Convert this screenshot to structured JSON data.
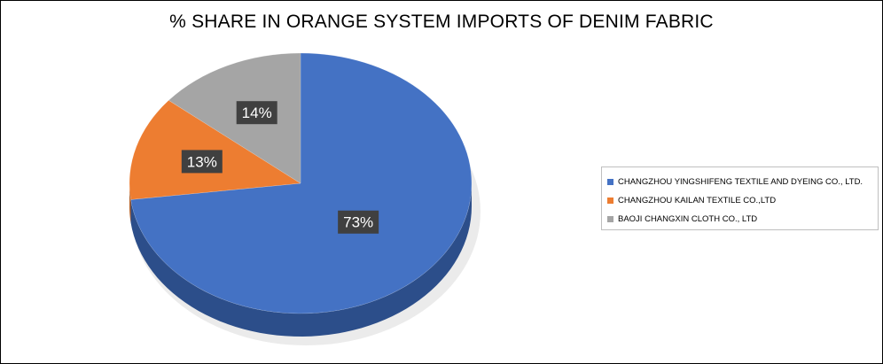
{
  "chart_data": {
    "type": "pie",
    "title": "% SHARE IN ORANGE SYSTEM IMPORTS OF DENIM FABRIC",
    "categories": [
      "CHANGZHOU YINGSHIFENG TEXTILE AND DYEING CO., LTD.",
      "CHANGZHOU KAILAN TEXTILE CO.,LTD",
      "BAOJI CHANGXIN CLOTH CO., LTD"
    ],
    "values": [
      73,
      13,
      14
    ],
    "labels": [
      "73%",
      "13%",
      "14%"
    ],
    "colors": [
      "#4472c4",
      "#ed7d31",
      "#a5a5a5"
    ],
    "side_colors": [
      "#2c4e8a",
      "#b05c22",
      "#7a7a7a"
    ],
    "legend_position": "right",
    "style": "3d"
  }
}
